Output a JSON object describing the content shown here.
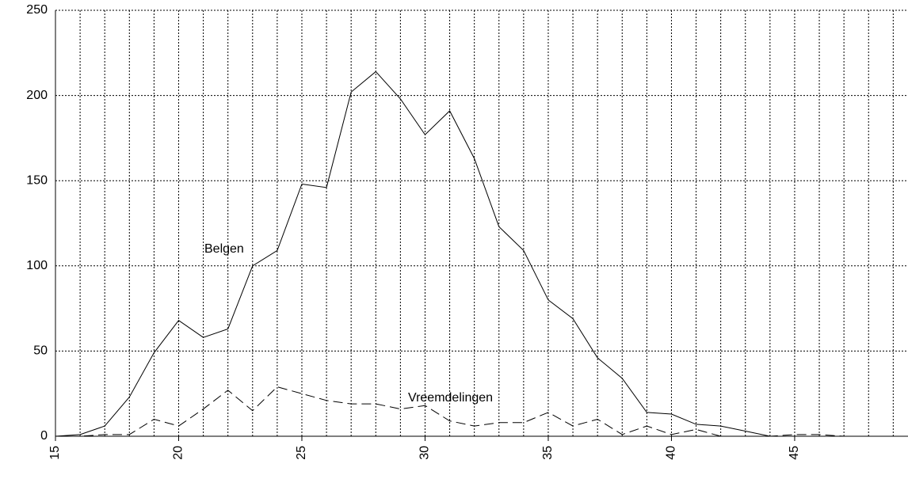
{
  "chart_data": {
    "type": "line",
    "x": [
      15,
      16,
      17,
      18,
      19,
      20,
      21,
      22,
      23,
      24,
      25,
      26,
      27,
      28,
      29,
      30,
      31,
      32,
      33,
      34,
      35,
      36,
      37,
      38,
      39,
      40,
      41,
      42,
      43,
      44,
      45,
      46,
      47,
      48,
      49
    ],
    "series": [
      {
        "name": "Belgen",
        "color": "#000000",
        "style": "solid",
        "values": [
          0,
          1,
          6,
          23,
          49,
          68,
          58,
          63,
          100,
          109,
          148,
          146,
          202,
          214,
          198,
          177,
          191,
          163,
          123,
          109,
          80,
          69,
          46,
          34,
          14,
          13,
          7,
          6,
          3,
          0,
          0,
          0,
          0,
          0,
          0
        ]
      },
      {
        "name": "Vreemdelingen",
        "color": "#000000",
        "style": "dashed",
        "values": [
          0,
          0,
          1,
          1,
          10,
          6,
          16,
          27,
          15,
          29,
          25,
          21,
          19,
          19,
          16,
          18,
          9,
          6,
          8,
          8,
          14,
          6,
          10,
          1,
          6,
          1,
          4,
          0,
          0,
          0,
          1,
          1,
          0,
          0,
          0
        ]
      }
    ],
    "xlim": [
      15,
      49.6
    ],
    "xticks": [
      15,
      20,
      25,
      30,
      35,
      40,
      45
    ],
    "xgrid": [
      15,
      16,
      17,
      18,
      19,
      20,
      21,
      22,
      23,
      24,
      25,
      26,
      27,
      28,
      29,
      30,
      31,
      32,
      33,
      34,
      35,
      36,
      37,
      38,
      39,
      40,
      41,
      42,
      43,
      44,
      45,
      46,
      47,
      48,
      49
    ],
    "ylim": [
      0,
      250
    ],
    "yticks": [
      0,
      50,
      100,
      150,
      200,
      250
    ],
    "grid": true
  }
}
